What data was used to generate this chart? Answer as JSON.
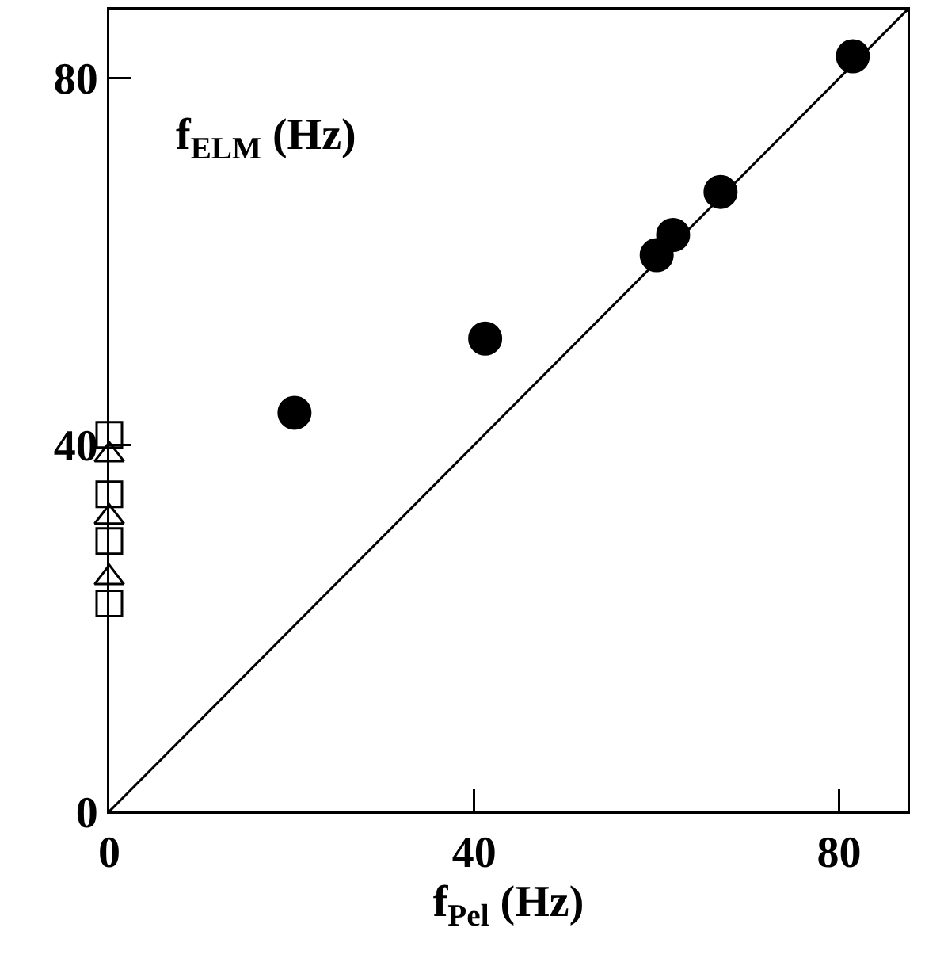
{
  "chart_data": {
    "type": "scatter",
    "xlabel": "f$_{Pel}$ (Hz)",
    "ylabel": "f$_{ELM}$ (Hz)",
    "xlim": [
      0,
      87.5
    ],
    "ylim": [
      0,
      87.5
    ],
    "xticks": [
      0,
      40,
      80
    ],
    "yticks": [
      0,
      40,
      80
    ],
    "grid": false,
    "series": [
      {
        "marker": "circle",
        "color": "#000000",
        "x": [
          20.3,
          41.2,
          60,
          61.8,
          67,
          81.5
        ],
        "values": [
          43.5,
          51.6,
          60.7,
          62.9,
          67.6,
          82.4
        ]
      },
      {
        "marker": "square",
        "color": "#000000",
        "x": [
          0,
          0,
          0,
          0
        ],
        "values": [
          41.1,
          34.6,
          29.5,
          22.7
        ]
      },
      {
        "marker": "triangle",
        "color": "#000000",
        "x": [
          0,
          0,
          0
        ],
        "values": [
          38.9,
          32.1,
          25.5
        ]
      },
      {
        "type": "line",
        "marker": "none",
        "line_style": "solid",
        "color": "#000000",
        "x": [
          0,
          87.5
        ],
        "values": [
          0,
          87.5
        ]
      }
    ]
  }
}
